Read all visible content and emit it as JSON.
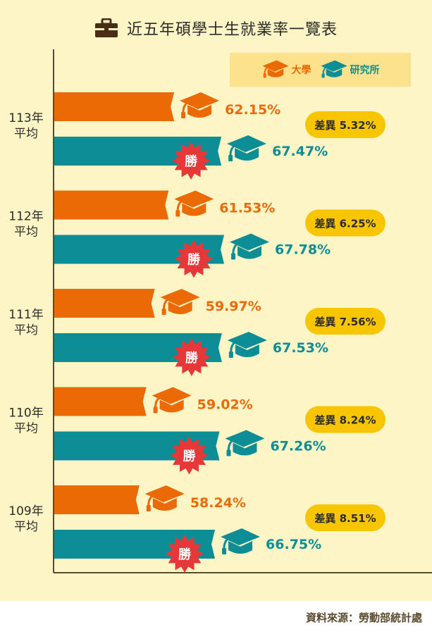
{
  "title": "近五年碩學士生就業率一覽表",
  "legend": {
    "university": "大學",
    "graduate": "研究所"
  },
  "source": "資料來源：勞動部統計處",
  "win_label": "勝",
  "colors": {
    "university": "#ec6a05",
    "graduate": "#0d8d95",
    "win": "#e63838",
    "diff_pill": "#f7c600",
    "background": "#fdf5c6"
  },
  "icons": {
    "title": "briefcase-icon",
    "bar_cap": "graduation-cap-icon",
    "win": "starburst-icon"
  },
  "chart_data": {
    "type": "bar",
    "orientation": "horizontal",
    "title": "近五年碩學士生就業率一覽表",
    "categories": [
      "113年\n平均",
      "112年\n平均",
      "111年\n平均",
      "110年\n平均",
      "109年\n平均"
    ],
    "series": [
      {
        "name": "大學",
        "values": [
          62.15,
          61.53,
          59.97,
          59.02,
          58.24
        ],
        "labels": [
          "62.15%",
          "61.53%",
          "59.97%",
          "59.02%",
          "58.24%"
        ]
      },
      {
        "name": "研究所",
        "values": [
          67.47,
          67.78,
          67.53,
          67.26,
          66.75
        ],
        "labels": [
          "67.47%",
          "67.78%",
          "67.53%",
          "67.26%",
          "66.75%"
        ]
      }
    ],
    "differences": [
      5.32,
      6.25,
      7.56,
      8.24,
      8.51
    ],
    "difference_labels": [
      "差異 5.32%",
      "差異 6.25%",
      "差異 7.56%",
      "差異 8.24%",
      "差異 8.51%"
    ],
    "winner_series": "研究所",
    "legend_position": "top-right"
  }
}
